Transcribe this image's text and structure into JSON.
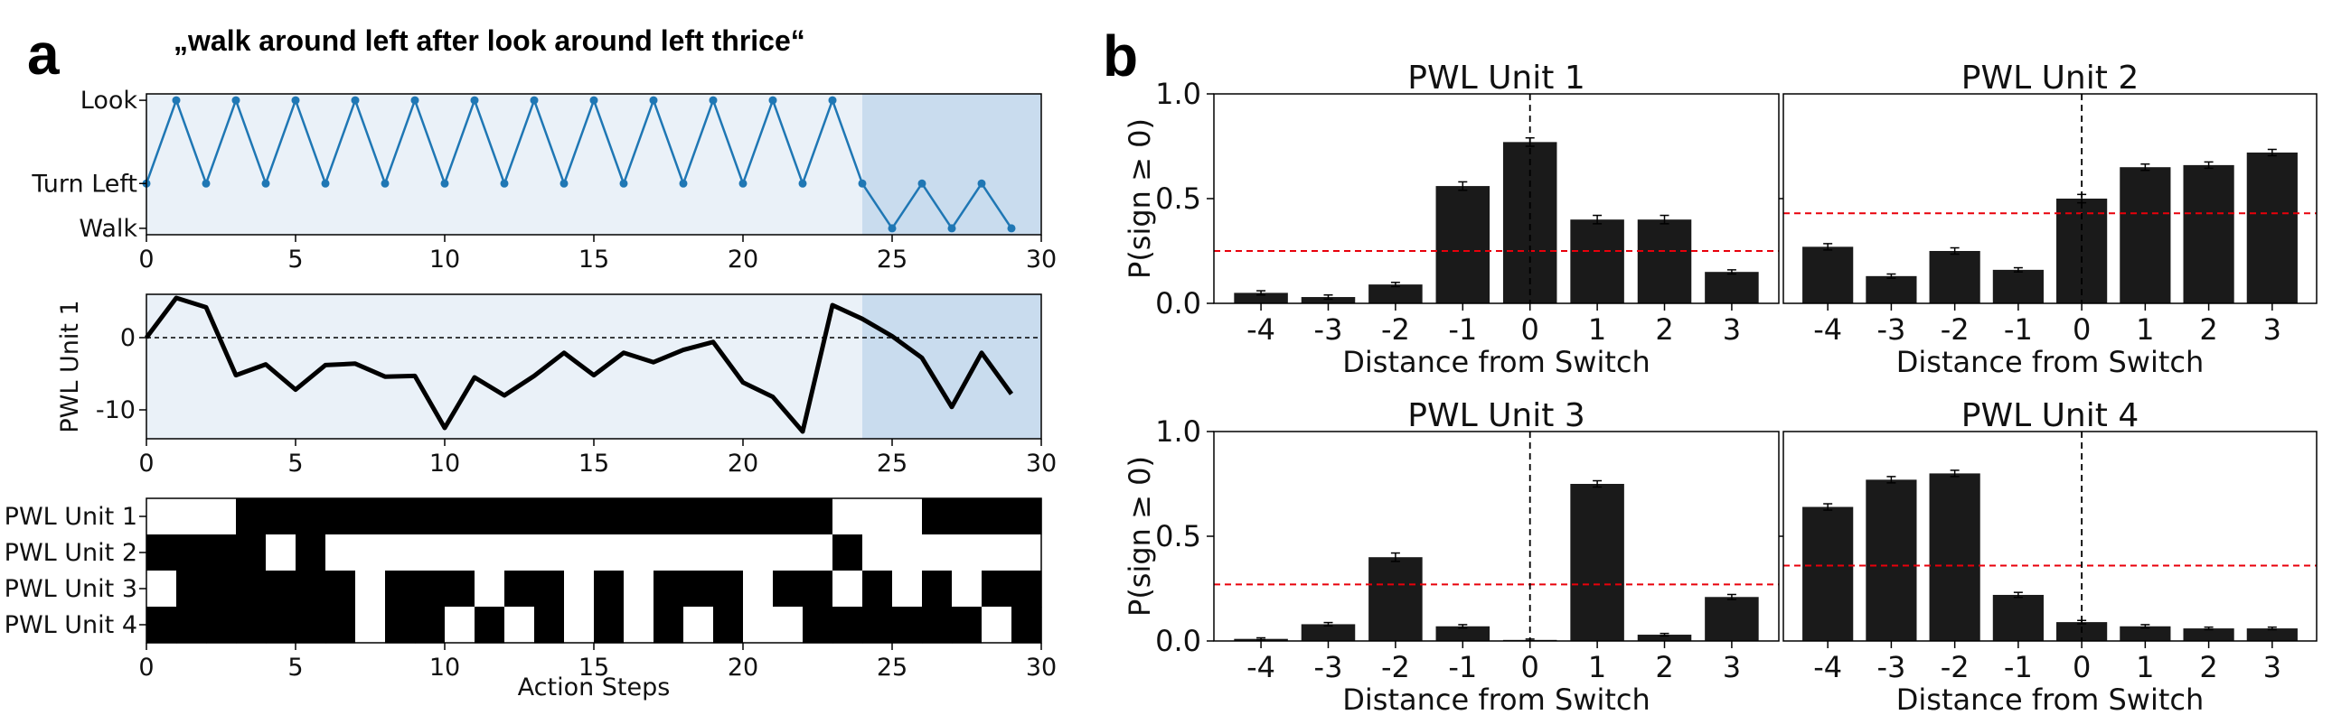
{
  "panels": {
    "a": "a",
    "b": "b"
  },
  "panel_a": {
    "title": "„walk around left after look around left thrice“",
    "x_ticks": [
      0,
      5,
      10,
      15,
      20,
      25,
      30
    ],
    "highlight_start": 24
  },
  "colors": {
    "accent": "#1f77b4",
    "light_bg": "#eaf1f8",
    "dark_bg": "#c9dcee",
    "bar": "#1a1a1a",
    "baseline": "#e8000b"
  },
  "chart_data": [
    {
      "type": "line",
      "title": "",
      "ylabel": "",
      "xlabel": "",
      "xlim": [
        0,
        30
      ],
      "ylim": [
        -0.1,
        2.1
      ],
      "y_ticks": [
        {
          "value": 0,
          "label": "Walk"
        },
        {
          "value": 0.7,
          "label": "Turn Left"
        },
        {
          "value": 2,
          "label": "Look"
        }
      ],
      "x": [
        0,
        1,
        2,
        3,
        4,
        5,
        6,
        7,
        8,
        9,
        10,
        11,
        12,
        13,
        14,
        15,
        16,
        17,
        18,
        19,
        20,
        21,
        22,
        23,
        24,
        25,
        26,
        27,
        28,
        29
      ],
      "values": [
        0.7,
        2,
        0.7,
        2,
        0.7,
        2,
        0.7,
        2,
        0.7,
        2,
        0.7,
        2,
        0.7,
        2,
        0.7,
        2,
        0.7,
        2,
        0.7,
        2,
        0.7,
        2,
        0.7,
        2,
        0.7,
        0,
        0.7,
        0,
        0.7,
        0
      ]
    },
    {
      "type": "line",
      "title": "",
      "ylabel": "PWL Unit 1",
      "xlabel": "",
      "xlim": [
        0,
        30
      ],
      "ylim": [
        -14,
        6
      ],
      "y_ticks": [
        0,
        -10
      ],
      "x": [
        0,
        1,
        2,
        3,
        4,
        5,
        6,
        7,
        8,
        9,
        10,
        11,
        12,
        13,
        14,
        15,
        16,
        17,
        18,
        19,
        20,
        21,
        22,
        23,
        24,
        25,
        26,
        27,
        28,
        29
      ],
      "values": [
        0,
        5.5,
        4.2,
        -5.2,
        -3.7,
        -7.2,
        -3.8,
        -3.6,
        -5.4,
        -5.3,
        -12.5,
        -5.5,
        -8,
        -5.3,
        -2.1,
        -5.2,
        -2.1,
        -3.4,
        -1.7,
        -0.6,
        -6.2,
        -8.2,
        -13,
        4.5,
        2.6,
        0.2,
        -2.8,
        -9.6,
        -2.1,
        -7.8
      ]
    },
    {
      "type": "heatmap",
      "title": "",
      "xlabel": "Action Steps",
      "xlim": [
        0,
        30
      ],
      "rows": [
        "PWL Unit 1",
        "PWL Unit 2",
        "PWL Unit 3",
        "PWL Unit 4"
      ],
      "values": [
        [
          0,
          0,
          0,
          1,
          1,
          1,
          1,
          1,
          1,
          1,
          1,
          1,
          1,
          1,
          1,
          1,
          1,
          1,
          1,
          1,
          1,
          1,
          1,
          0,
          0,
          0,
          1,
          1,
          1,
          1
        ],
        [
          1,
          1,
          1,
          1,
          0,
          1,
          0,
          0,
          0,
          0,
          0,
          0,
          0,
          0,
          0,
          0,
          0,
          0,
          0,
          0,
          0,
          0,
          0,
          1,
          0,
          0,
          0,
          0,
          0,
          0
        ],
        [
          0,
          1,
          1,
          1,
          1,
          1,
          1,
          0,
          1,
          1,
          1,
          0,
          1,
          1,
          0,
          1,
          0,
          1,
          1,
          1,
          0,
          1,
          1,
          0,
          1,
          0,
          1,
          0,
          1,
          1
        ],
        [
          1,
          1,
          1,
          1,
          1,
          1,
          1,
          0,
          1,
          1,
          0,
          1,
          0,
          1,
          0,
          1,
          0,
          1,
          0,
          1,
          0,
          0,
          1,
          1,
          1,
          1,
          1,
          1,
          0,
          1
        ]
      ]
    },
    {
      "type": "bar",
      "title": "PWL Unit 1",
      "xlabel": "Distance from Switch",
      "ylabel": "P(sign ≥ 0)",
      "categories": [
        "-4",
        "-3",
        "-2",
        "-1",
        "0",
        "1",
        "2",
        "3"
      ],
      "values": [
        0.05,
        0.03,
        0.09,
        0.56,
        0.77,
        0.4,
        0.4,
        0.15
      ],
      "errors": [
        0.01,
        0.01,
        0.01,
        0.02,
        0.02,
        0.02,
        0.02,
        0.01
      ],
      "baseline": 0.25,
      "ylim": [
        0,
        1.0
      ],
      "y_ticks": [
        "0.0",
        "0.5",
        "1.0"
      ]
    },
    {
      "type": "bar",
      "title": "PWL Unit 2",
      "xlabel": "Distance from Switch",
      "ylabel": "",
      "categories": [
        "-4",
        "-3",
        "-2",
        "-1",
        "0",
        "1",
        "2",
        "3"
      ],
      "values": [
        0.27,
        0.13,
        0.25,
        0.16,
        0.5,
        0.65,
        0.66,
        0.72
      ],
      "errors": [
        0.015,
        0.01,
        0.015,
        0.01,
        0.02,
        0.015,
        0.015,
        0.015
      ],
      "baseline": 0.43,
      "ylim": [
        0,
        1.0
      ],
      "y_ticks": []
    },
    {
      "type": "bar",
      "title": "PWL Unit 3",
      "xlabel": "Distance from Switch",
      "ylabel": "P(sign ≥ 0)",
      "categories": [
        "-4",
        "-3",
        "-2",
        "-1",
        "0",
        "1",
        "2",
        "3"
      ],
      "values": [
        0.01,
        0.08,
        0.4,
        0.07,
        0.005,
        0.75,
        0.03,
        0.21
      ],
      "errors": [
        0.005,
        0.008,
        0.02,
        0.008,
        0.004,
        0.015,
        0.006,
        0.012
      ],
      "baseline": 0.27,
      "ylim": [
        0,
        1.0
      ],
      "y_ticks": [
        "0.0",
        "0.5",
        "1.0"
      ]
    },
    {
      "type": "bar",
      "title": "PWL Unit 4",
      "xlabel": "Distance from Switch",
      "ylabel": "",
      "categories": [
        "-4",
        "-3",
        "-2",
        "-1",
        "0",
        "1",
        "2",
        "3"
      ],
      "values": [
        0.64,
        0.77,
        0.8,
        0.22,
        0.09,
        0.07,
        0.06,
        0.06
      ],
      "errors": [
        0.015,
        0.015,
        0.015,
        0.012,
        0.008,
        0.008,
        0.006,
        0.006
      ],
      "baseline": 0.36,
      "ylim": [
        0,
        1.0
      ],
      "y_ticks": []
    }
  ]
}
